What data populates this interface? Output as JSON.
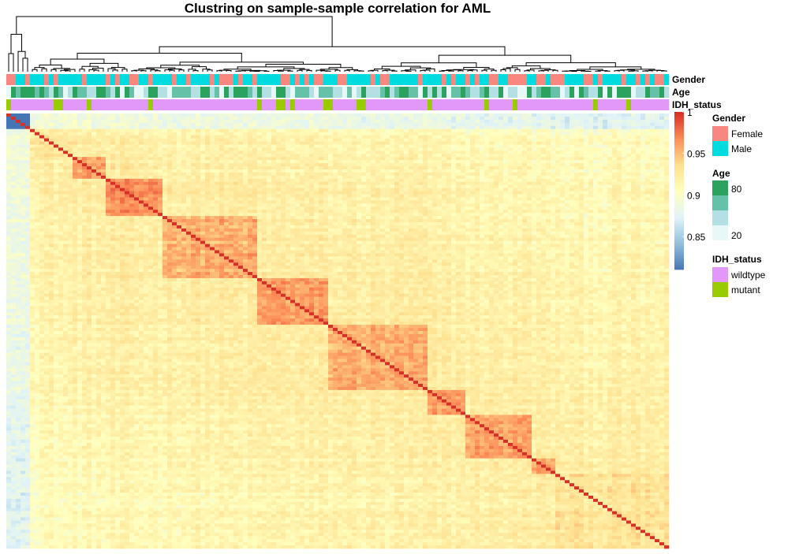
{
  "chart_data": {
    "type": "heatmap",
    "title": "Clustring on sample-sample correlation for AML",
    "n_samples": 140,
    "value_range": [
      0.81,
      1.0
    ],
    "colorbar": {
      "ticks": [
        {
          "value": 1.0,
          "label": "1"
        },
        {
          "value": 0.95,
          "label": "0.95"
        },
        {
          "value": 0.9,
          "label": "0.9"
        },
        {
          "value": 0.85,
          "label": "0.85"
        }
      ],
      "colors": [
        "#4575b4",
        "#91bfdb",
        "#e0f3f8",
        "#ffffbf",
        "#fee090",
        "#fc8d59",
        "#d73027"
      ]
    },
    "diagonal_value": 1.0,
    "clusters": [
      {
        "start": 0,
        "end": 5,
        "within": 0.86
      },
      {
        "start": 5,
        "end": 14,
        "within": 0.93
      },
      {
        "start": 14,
        "end": 21,
        "within": 0.96
      },
      {
        "start": 21,
        "end": 33,
        "within": 0.965
      },
      {
        "start": 33,
        "end": 53,
        "within": 0.955
      },
      {
        "start": 53,
        "end": 68,
        "within": 0.96
      },
      {
        "start": 68,
        "end": 89,
        "within": 0.955
      },
      {
        "start": 89,
        "end": 97,
        "within": 0.96
      },
      {
        "start": 97,
        "end": 111,
        "within": 0.96
      },
      {
        "start": 111,
        "end": 116,
        "within": 0.96
      },
      {
        "start": 116,
        "end": 140,
        "within": 0.93
      }
    ],
    "annotations": [
      {
        "name": "Gender",
        "legend_title": "Gender",
        "levels": [
          {
            "label": "Female",
            "color": "#f8877f"
          },
          {
            "label": "Male",
            "color": "#00dbe0"
          }
        ]
      },
      {
        "name": "Age",
        "legend_title": "Age",
        "scale": [
          "#e8f7f8",
          "#b2e0e3",
          "#65c1a8",
          "#2ca25f"
        ],
        "tick_labels": [
          "80",
          "20"
        ]
      },
      {
        "name": "IDH_status",
        "legend_title": "IDH_status",
        "levels": [
          {
            "label": "wildtype",
            "color": "#e298f8"
          },
          {
            "label": "mutant",
            "color": "#99cc00"
          }
        ]
      }
    ],
    "mutant_fraction": 0.13,
    "female_fraction": 0.4
  }
}
